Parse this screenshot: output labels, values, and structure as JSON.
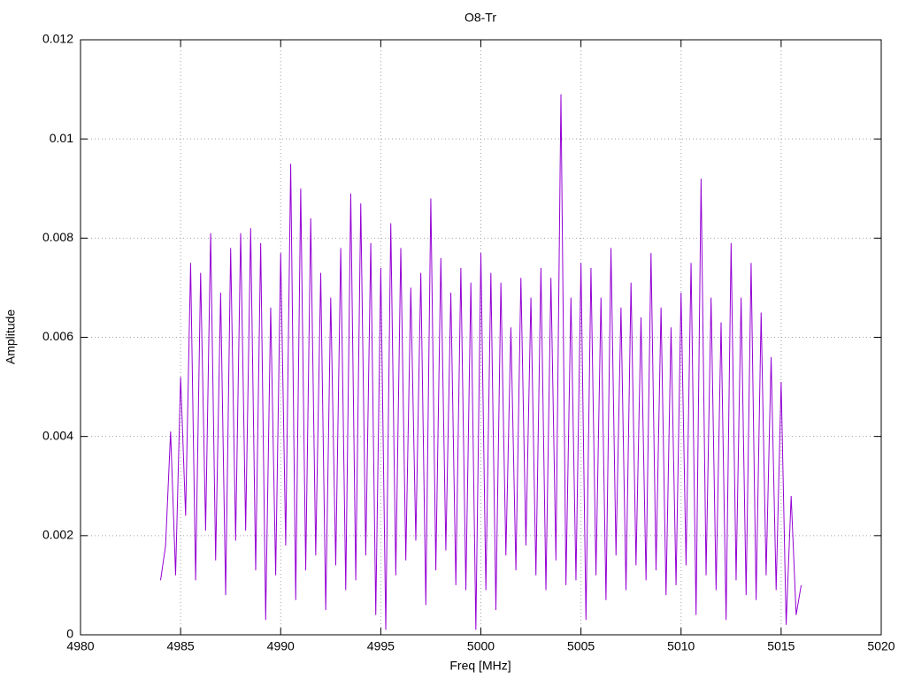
{
  "chart_data": {
    "type": "line",
    "title": "O8-Tr",
    "x_label": "Freq [MHz]",
    "y_label": "Amplitude",
    "xlim": [
      4980,
      5020
    ],
    "xticks": [
      4980,
      4985,
      4990,
      4995,
      5000,
      5005,
      5010,
      5015,
      5020
    ],
    "ylim": [
      0,
      0.012
    ],
    "yticks": [
      0,
      0.002,
      0.004,
      0.006,
      0.008,
      0.01,
      0.012
    ],
    "grid": true,
    "x": [
      4984,
      4984.25,
      4984.5,
      4984.75,
      4985,
      4985.25,
      4985.5,
      4985.75,
      4986,
      4986.25,
      4986.5,
      4986.75,
      4987,
      4987.25,
      4987.5,
      4987.75,
      4988,
      4988.25,
      4988.5,
      4988.75,
      4989,
      4989.25,
      4989.5,
      4989.75,
      4990,
      4990.25,
      4990.5,
      4990.75,
      4991,
      4991.25,
      4991.5,
      4991.75,
      4992,
      4992.25,
      4992.5,
      4992.75,
      4993,
      4993.25,
      4993.5,
      4993.75,
      4994,
      4994.25,
      4994.5,
      4994.75,
      4995,
      4995.25,
      4995.5,
      4995.75,
      4996,
      4996.25,
      4996.5,
      4996.75,
      4997,
      4997.25,
      4997.5,
      4997.75,
      4998,
      4998.25,
      4998.5,
      4998.75,
      4999,
      4999.25,
      4999.5,
      4999.75,
      5000,
      5000.25,
      5000.5,
      5000.75,
      5001,
      5001.25,
      5001.5,
      5001.75,
      5002,
      5002.25,
      5002.5,
      5002.75,
      5003,
      5003.25,
      5003.5,
      5003.75,
      5004,
      5004.25,
      5004.5,
      5004.75,
      5005,
      5005.25,
      5005.5,
      5005.75,
      5006,
      5006.25,
      5006.5,
      5006.75,
      5007,
      5007.25,
      5007.5,
      5007.75,
      5008,
      5008.25,
      5008.5,
      5008.75,
      5009,
      5009.25,
      5009.5,
      5009.75,
      5010,
      5010.25,
      5010.5,
      5010.75,
      5011,
      5011.25,
      5011.5,
      5011.75,
      5012,
      5012.25,
      5012.5,
      5012.75,
      5013,
      5013.25,
      5013.5,
      5013.75,
      5014,
      5014.25,
      5014.5,
      5014.75,
      5015,
      5015.25,
      5015.5,
      5015.75,
      5016
    ],
    "series": [
      {
        "color": "#9400d3",
        "values": [
          0.0011,
          0.0018,
          0.0041,
          0.0012,
          0.0052,
          0.0024,
          0.0075,
          0.0011,
          0.0073,
          0.0021,
          0.0081,
          0.0015,
          0.0069,
          0.0008,
          0.0078,
          0.0019,
          0.0081,
          0.0021,
          0.0082,
          0.0013,
          0.0079,
          0.0003,
          0.0066,
          0.0012,
          0.0077,
          0.0018,
          0.0095,
          0.0007,
          0.009,
          0.0013,
          0.0084,
          0.0016,
          0.0073,
          0.0005,
          0.0068,
          0.0014,
          0.0078,
          0.0009,
          0.0089,
          0.0011,
          0.0087,
          0.0016,
          0.0079,
          0.0004,
          0.0074,
          0.0001,
          0.0083,
          0.0012,
          0.0078,
          0.0015,
          0.007,
          0.0019,
          0.0073,
          0.0006,
          0.0088,
          0.0013,
          0.0076,
          0.0017,
          0.0069,
          0.001,
          0.0074,
          0.0009,
          0.0071,
          0.0001,
          0.0077,
          0.0009,
          0.0073,
          0.0005,
          0.0071,
          0.0016,
          0.0062,
          0.0013,
          0.0072,
          0.0018,
          0.0068,
          0.0012,
          0.0074,
          0.0009,
          0.0072,
          0.0015,
          0.0109,
          0.001,
          0.0068,
          0.0011,
          0.0075,
          0.0003,
          0.0074,
          0.0012,
          0.0068,
          0.0007,
          0.0078,
          0.0016,
          0.0066,
          0.0009,
          0.0071,
          0.0014,
          0.0064,
          0.0011,
          0.0077,
          0.0013,
          0.0066,
          0.0008,
          0.0062,
          0.001,
          0.0069,
          0.0014,
          0.0075,
          0.0004,
          0.0092,
          0.0012,
          0.0068,
          0.0009,
          0.0063,
          0.0003,
          0.0079,
          0.0011,
          0.0068,
          0.0008,
          0.0075,
          0.0007,
          0.0065,
          0.0012,
          0.0056,
          0.0009,
          0.0051,
          0.0002,
          0.0028,
          0.0004,
          0.001
        ]
      }
    ]
  }
}
